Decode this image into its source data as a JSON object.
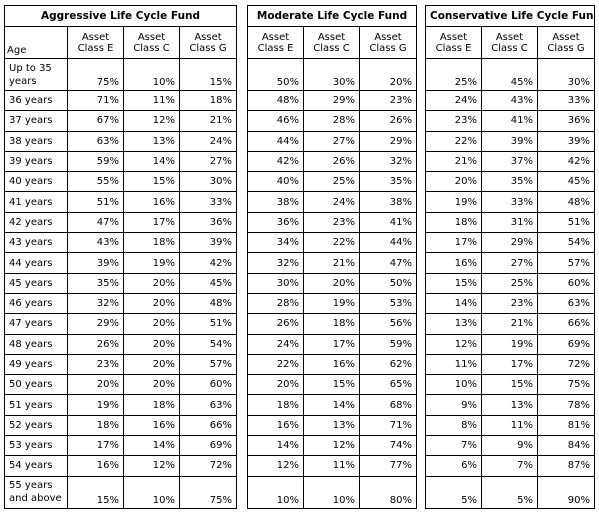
{
  "age_header": "Age",
  "class_headers": [
    [
      "Asset",
      "Class E"
    ],
    [
      "Asset",
      "Class C"
    ],
    [
      "Asset",
      "Class G"
    ]
  ],
  "funds": [
    {
      "title": "Aggressive Life Cycle Fund",
      "rows": [
        [
          "75%",
          "10%",
          "15%"
        ],
        [
          "71%",
          "11%",
          "18%"
        ],
        [
          "67%",
          "12%",
          "21%"
        ],
        [
          "63%",
          "13%",
          "24%"
        ],
        [
          "59%",
          "14%",
          "27%"
        ],
        [
          "55%",
          "15%",
          "30%"
        ],
        [
          "51%",
          "16%",
          "33%"
        ],
        [
          "47%",
          "17%",
          "36%"
        ],
        [
          "43%",
          "18%",
          "39%"
        ],
        [
          "39%",
          "19%",
          "42%"
        ],
        [
          "35%",
          "20%",
          "45%"
        ],
        [
          "32%",
          "20%",
          "48%"
        ],
        [
          "29%",
          "20%",
          "51%"
        ],
        [
          "26%",
          "20%",
          "54%"
        ],
        [
          "23%",
          "20%",
          "57%"
        ],
        [
          "20%",
          "20%",
          "60%"
        ],
        [
          "19%",
          "18%",
          "63%"
        ],
        [
          "18%",
          "16%",
          "66%"
        ],
        [
          "17%",
          "14%",
          "69%"
        ],
        [
          "16%",
          "12%",
          "72%"
        ],
        [
          "15%",
          "10%",
          "75%"
        ]
      ]
    },
    {
      "title": "Moderate Life Cycle Fund",
      "rows": [
        [
          "50%",
          "30%",
          "20%"
        ],
        [
          "48%",
          "29%",
          "23%"
        ],
        [
          "46%",
          "28%",
          "26%"
        ],
        [
          "44%",
          "27%",
          "29%"
        ],
        [
          "42%",
          "26%",
          "32%"
        ],
        [
          "40%",
          "25%",
          "35%"
        ],
        [
          "38%",
          "24%",
          "38%"
        ],
        [
          "36%",
          "23%",
          "41%"
        ],
        [
          "34%",
          "22%",
          "44%"
        ],
        [
          "32%",
          "21%",
          "47%"
        ],
        [
          "30%",
          "20%",
          "50%"
        ],
        [
          "28%",
          "19%",
          "53%"
        ],
        [
          "26%",
          "18%",
          "56%"
        ],
        [
          "24%",
          "17%",
          "59%"
        ],
        [
          "22%",
          "16%",
          "62%"
        ],
        [
          "20%",
          "15%",
          "65%"
        ],
        [
          "18%",
          "14%",
          "68%"
        ],
        [
          "16%",
          "13%",
          "71%"
        ],
        [
          "14%",
          "12%",
          "74%"
        ],
        [
          "12%",
          "11%",
          "77%"
        ],
        [
          "10%",
          "10%",
          "80%"
        ]
      ]
    },
    {
      "title": "Conservative Life Cycle Fund",
      "rows": [
        [
          "25%",
          "45%",
          "30%"
        ],
        [
          "24%",
          "43%",
          "33%"
        ],
        [
          "23%",
          "41%",
          "36%"
        ],
        [
          "22%",
          "39%",
          "39%"
        ],
        [
          "21%",
          "37%",
          "42%"
        ],
        [
          "20%",
          "35%",
          "45%"
        ],
        [
          "19%",
          "33%",
          "48%"
        ],
        [
          "18%",
          "31%",
          "51%"
        ],
        [
          "17%",
          "29%",
          "54%"
        ],
        [
          "16%",
          "27%",
          "57%"
        ],
        [
          "15%",
          "25%",
          "60%"
        ],
        [
          "14%",
          "23%",
          "63%"
        ],
        [
          "13%",
          "21%",
          "66%"
        ],
        [
          "12%",
          "19%",
          "69%"
        ],
        [
          "11%",
          "17%",
          "72%"
        ],
        [
          "10%",
          "15%",
          "75%"
        ],
        [
          "9%",
          "13%",
          "78%"
        ],
        [
          "8%",
          "11%",
          "81%"
        ],
        [
          "7%",
          "9%",
          "84%"
        ],
        [
          "6%",
          "7%",
          "87%"
        ],
        [
          "5%",
          "5%",
          "90%"
        ]
      ]
    }
  ],
  "ages": [
    [
      "Up to 35",
      "years"
    ],
    [
      "36 years"
    ],
    [
      "37 years"
    ],
    [
      "38 years"
    ],
    [
      "39 years"
    ],
    [
      "40 years"
    ],
    [
      "41 years"
    ],
    [
      "42 years"
    ],
    [
      "43 years"
    ],
    [
      "44 years"
    ],
    [
      "45 years"
    ],
    [
      "46 years"
    ],
    [
      "47 years"
    ],
    [
      "48 years"
    ],
    [
      "49 years"
    ],
    [
      "50 years"
    ],
    [
      "51 years"
    ],
    [
      "52 years"
    ],
    [
      "53 years"
    ],
    [
      "54 years"
    ],
    [
      "55 years",
      "and above"
    ]
  ]
}
